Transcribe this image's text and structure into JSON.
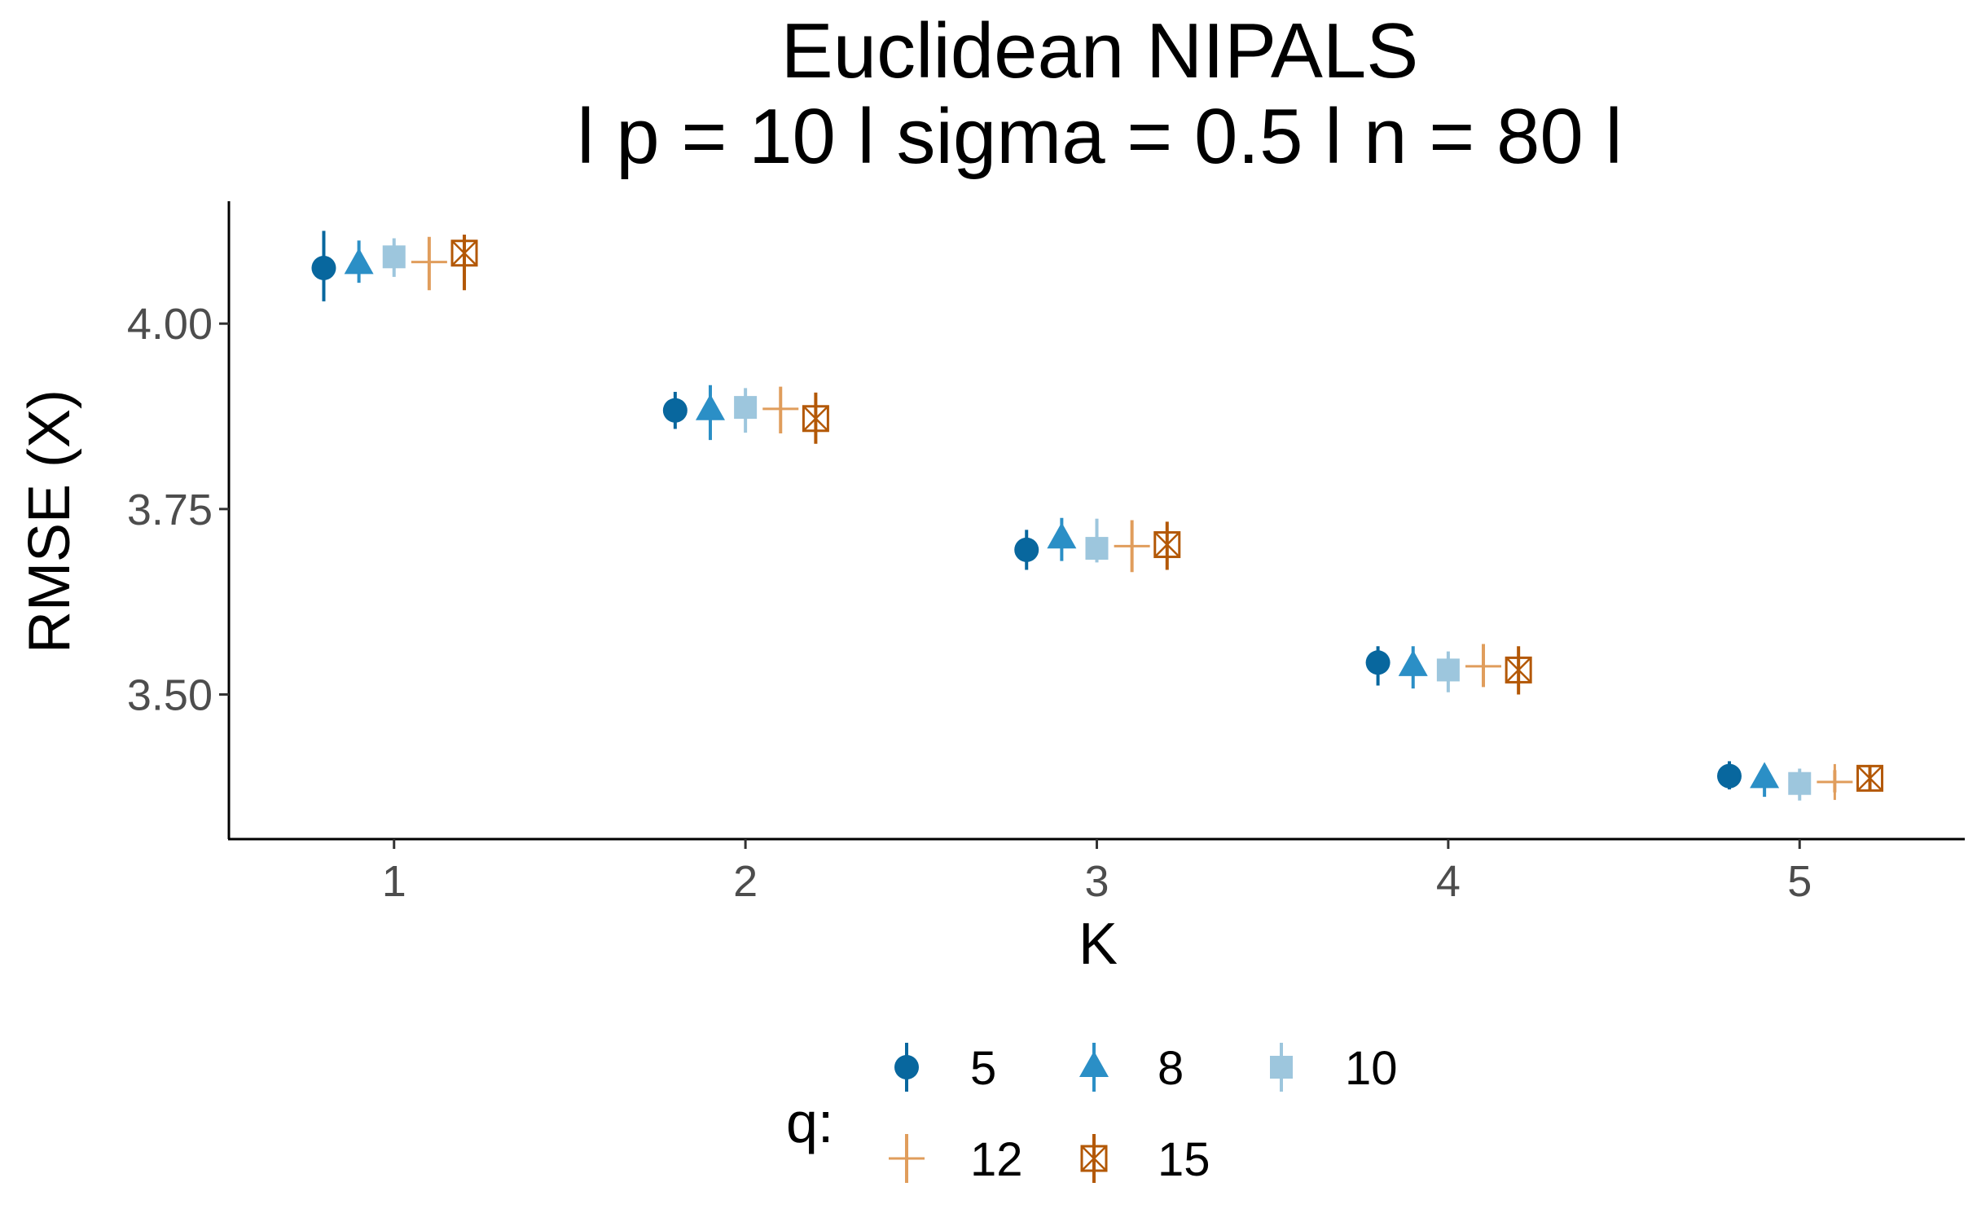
{
  "chart_data": {
    "type": "scatter",
    "title": "Euclidean NIPALS",
    "subtitle": "l p = 10 l sigma = 0.5 l n = 80 l",
    "xlabel": "K",
    "ylabel": "RMSE (X)",
    "x_ticks": [
      "1",
      "2",
      "3",
      "4",
      "5"
    ],
    "y_ticks": [
      "3.50",
      "3.75",
      "4.00"
    ],
    "xlim": [
      0.53,
      5.47
    ],
    "ylim": [
      3.305,
      4.165
    ],
    "grid": false,
    "legend": {
      "title": "q:",
      "position": "bottom"
    },
    "categories": [
      1,
      2,
      3,
      4,
      5
    ],
    "series": [
      {
        "name": "5",
        "color": "#08679e",
        "shape": "circle",
        "values": [
          4.075,
          3.883,
          3.695,
          3.543,
          3.39
        ],
        "lower": [
          4.03,
          3.858,
          3.668,
          3.512,
          3.372
        ],
        "upper": [
          4.125,
          3.908,
          3.722,
          3.565,
          3.41
        ]
      },
      {
        "name": "8",
        "color": "#2b8fc6",
        "shape": "triangle",
        "values": [
          4.08,
          3.883,
          3.71,
          3.538,
          3.387
        ],
        "lower": [
          4.055,
          3.843,
          3.68,
          3.508,
          3.362
        ],
        "upper": [
          4.112,
          3.917,
          3.738,
          3.565,
          3.405
        ]
      },
      {
        "name": "10",
        "color": "#9dc6dd",
        "shape": "square",
        "values": [
          4.09,
          3.887,
          3.697,
          3.533,
          3.38
        ],
        "lower": [
          4.063,
          3.853,
          3.678,
          3.503,
          3.357
        ],
        "upper": [
          4.115,
          3.913,
          3.737,
          3.558,
          3.4
        ]
      },
      {
        "name": "12",
        "color": "#e09d5c",
        "shape": "plus",
        "values": [
          4.083,
          3.885,
          3.7,
          3.538,
          3.382
        ],
        "lower": [
          4.045,
          3.852,
          3.665,
          3.51,
          3.368
        ],
        "upper": [
          4.117,
          3.915,
          3.735,
          3.568,
          3.398
        ]
      },
      {
        "name": "15",
        "color": "#b35806",
        "shape": "boxcross",
        "values": [
          4.095,
          3.872,
          3.702,
          3.533,
          3.387
        ],
        "lower": [
          4.045,
          3.838,
          3.668,
          3.5,
          3.372
        ],
        "upper": [
          4.12,
          3.907,
          3.733,
          3.565,
          3.405
        ]
      }
    ]
  }
}
